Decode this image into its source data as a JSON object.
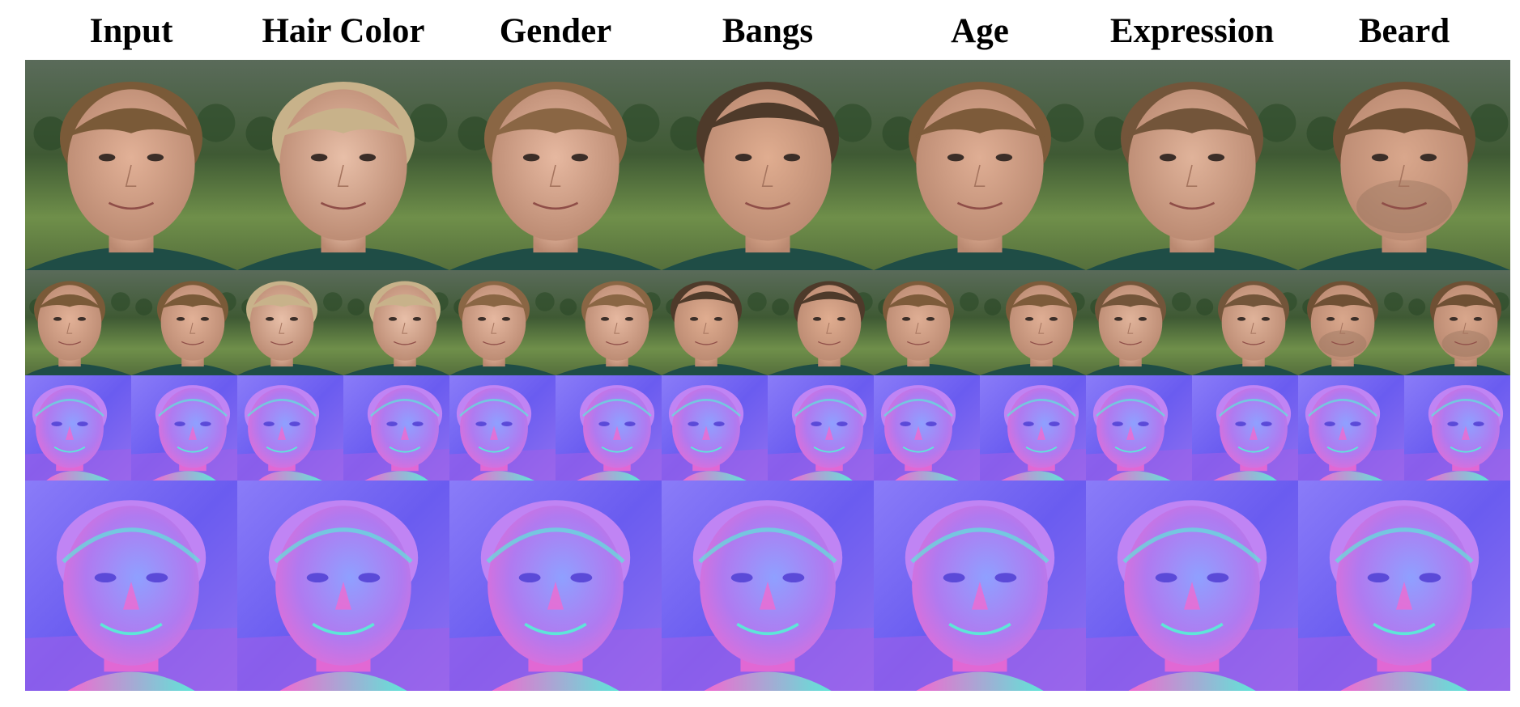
{
  "columns": [
    {
      "label": "Input",
      "hair": "#7a5a38",
      "skin": "#e2b197",
      "beard": false,
      "bangs": true
    },
    {
      "label": "Hair Color",
      "hair": "#c8b28a",
      "skin": "#e8bfa8",
      "beard": false,
      "bangs": true
    },
    {
      "label": "Gender",
      "hair": "#8a6644",
      "skin": "#e6b8a0",
      "beard": false,
      "bangs": true
    },
    {
      "label": "Bangs",
      "hair": "#4e3a2a",
      "skin": "#e0ad90",
      "beard": false,
      "bangs": false
    },
    {
      "label": "Age",
      "hair": "#7d5b3a",
      "skin": "#dfae94",
      "beard": false,
      "bangs": true
    },
    {
      "label": "Expression",
      "hair": "#73553a",
      "skin": "#e0b39a",
      "beard": false,
      "bangs": true
    },
    {
      "label": "Beard",
      "hair": "#6f5034",
      "skin": "#d9a78c",
      "beard": true,
      "bangs": true
    }
  ],
  "colors": {
    "background_green": "#3f5a34",
    "grass": "#6f8f4a",
    "shirt": "#1f4d46",
    "normal_blue": "#6a5cf0",
    "normal_pink": "#f06ad0",
    "normal_cyan": "#5ee6d8"
  }
}
